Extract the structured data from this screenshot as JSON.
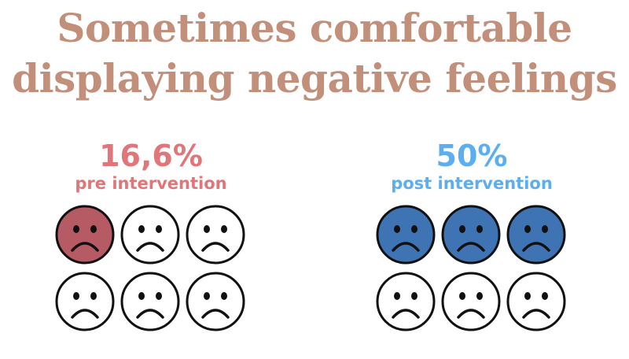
{
  "title": {
    "line1": "Sometimes comfortable",
    "line2": "displaying negative feelings"
  },
  "colors": {
    "title": "#C2907A",
    "pre": "#E1767A",
    "pre_face_fill": "#B65A63",
    "post": "#5BAEF0",
    "post_face_fill": "#3F74B4",
    "outline": "#111111"
  },
  "pre": {
    "percent": "16,6%",
    "label": "pre intervention",
    "filled_faces": 1,
    "total_faces": 6
  },
  "post": {
    "percent": "50%",
    "label": "post intervention",
    "filled_faces": 3,
    "total_faces": 6
  },
  "icons": {
    "face": "sad-face-icon"
  }
}
